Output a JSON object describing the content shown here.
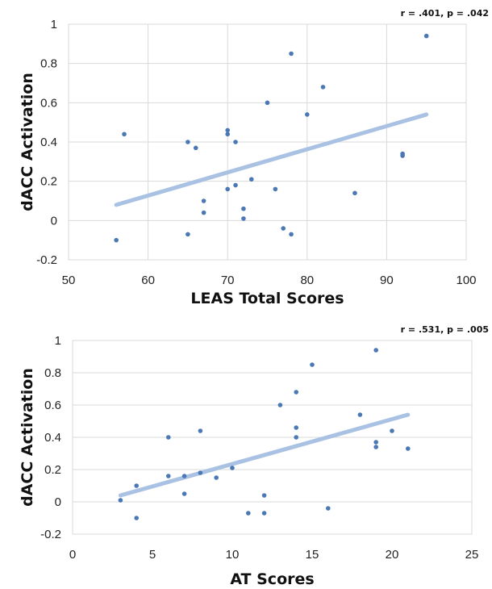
{
  "chart_data": [
    {
      "type": "scatter",
      "title": "",
      "annotation": "r = .401, p = .042",
      "xlabel": "LEAS Total Scores",
      "ylabel": "dACC Activation",
      "xlim": [
        50,
        100
      ],
      "ylim": [
        -0.2,
        1
      ],
      "xticks": [
        50,
        60,
        70,
        80,
        90,
        100
      ],
      "yticks": [
        -0.2,
        0,
        0.2,
        0.4,
        0.6,
        0.8,
        1
      ],
      "ytick_labels": [
        "-0.2",
        "0",
        "0.2",
        "0.4",
        "0.6",
        "0.8",
        "1"
      ],
      "xtick_labels": [
        "50",
        "60",
        "70",
        "80",
        "90",
        "100"
      ],
      "grid": "vertical",
      "colors": {
        "points": "#4a78b5",
        "trendline": "#a9c1e2"
      },
      "points": [
        {
          "x": 56,
          "y": -0.1
        },
        {
          "x": 57,
          "y": 0.44
        },
        {
          "x": 65,
          "y": 0.4
        },
        {
          "x": 65,
          "y": -0.07
        },
        {
          "x": 66,
          "y": 0.37
        },
        {
          "x": 67,
          "y": 0.1
        },
        {
          "x": 67,
          "y": 0.04
        },
        {
          "x": 70,
          "y": 0.46
        },
        {
          "x": 70,
          "y": 0.44
        },
        {
          "x": 70,
          "y": 0.16
        },
        {
          "x": 71,
          "y": 0.4
        },
        {
          "x": 71,
          "y": 0.18
        },
        {
          "x": 72,
          "y": 0.06
        },
        {
          "x": 72,
          "y": 0.01
        },
        {
          "x": 73,
          "y": 0.21
        },
        {
          "x": 75,
          "y": 0.6
        },
        {
          "x": 76,
          "y": 0.16
        },
        {
          "x": 77,
          "y": -0.04
        },
        {
          "x": 78,
          "y": 0.85
        },
        {
          "x": 78,
          "y": -0.07
        },
        {
          "x": 80,
          "y": 0.54
        },
        {
          "x": 82,
          "y": 0.68
        },
        {
          "x": 86,
          "y": 0.14
        },
        {
          "x": 92,
          "y": 0.34
        },
        {
          "x": 92,
          "y": 0.33
        },
        {
          "x": 95,
          "y": 0.94
        }
      ],
      "trendline": [
        {
          "x": 56,
          "y": 0.08
        },
        {
          "x": 95,
          "y": 0.54
        }
      ]
    },
    {
      "type": "scatter",
      "title": "",
      "annotation": "r = .531, p = .005",
      "xlabel": "AT Scores",
      "ylabel": "dACC Activation",
      "xlim": [
        0,
        25
      ],
      "ylim": [
        -0.2,
        1
      ],
      "xticks": [
        0,
        5,
        10,
        15,
        20,
        25
      ],
      "yticks": [
        -0.2,
        0,
        0.2,
        0.4,
        0.6,
        0.8,
        1
      ],
      "ytick_labels": [
        "-0.2",
        "0",
        "0.2",
        "0.4",
        "0.6",
        "0.8",
        "1"
      ],
      "xtick_labels": [
        "0",
        "5",
        "10",
        "15",
        "20",
        "25"
      ],
      "grid": "none",
      "colors": {
        "points": "#4a78b5",
        "trendline": "#a9c1e2"
      },
      "points": [
        {
          "x": 3,
          "y": 0.01
        },
        {
          "x": 4,
          "y": 0.1
        },
        {
          "x": 4,
          "y": -0.1
        },
        {
          "x": 6,
          "y": 0.4
        },
        {
          "x": 6,
          "y": 0.16
        },
        {
          "x": 7,
          "y": 0.16
        },
        {
          "x": 7,
          "y": 0.05
        },
        {
          "x": 8,
          "y": 0.44
        },
        {
          "x": 8,
          "y": 0.18
        },
        {
          "x": 9,
          "y": 0.15
        },
        {
          "x": 10,
          "y": 0.21
        },
        {
          "x": 11,
          "y": -0.07
        },
        {
          "x": 12,
          "y": 0.04
        },
        {
          "x": 12,
          "y": -0.07
        },
        {
          "x": 13,
          "y": 0.6
        },
        {
          "x": 14,
          "y": 0.68
        },
        {
          "x": 14,
          "y": 0.46
        },
        {
          "x": 14,
          "y": 0.4
        },
        {
          "x": 15,
          "y": 0.85
        },
        {
          "x": 16,
          "y": -0.04
        },
        {
          "x": 18,
          "y": 0.54
        },
        {
          "x": 19,
          "y": 0.94
        },
        {
          "x": 19,
          "y": 0.37
        },
        {
          "x": 19,
          "y": 0.34
        },
        {
          "x": 20,
          "y": 0.44
        },
        {
          "x": 21,
          "y": 0.33
        }
      ],
      "trendline": [
        {
          "x": 3,
          "y": 0.04
        },
        {
          "x": 21,
          "y": 0.54
        }
      ]
    }
  ]
}
